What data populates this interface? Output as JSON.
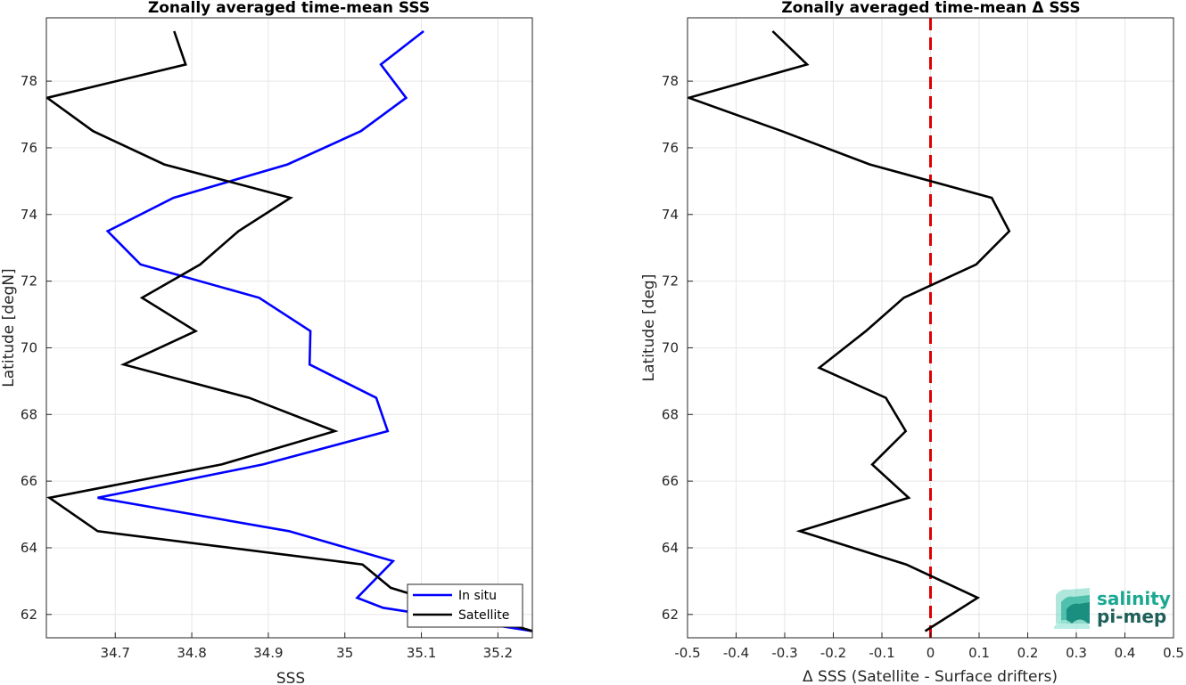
{
  "chart_data": [
    {
      "type": "line",
      "title": "Zonally averaged time-mean SSS",
      "xlabel": "SSS",
      "ylabel": "Latitude [degN]",
      "xlim": [
        34.61,
        35.245
      ],
      "ylim": [
        61.3,
        79.9
      ],
      "xticks": [
        34.7,
        34.8,
        34.9,
        35,
        35.1,
        35.2
      ],
      "xtick_labels": [
        "34.7",
        "34.8",
        "34.9",
        "35",
        "35.1",
        "35.2"
      ],
      "yticks": [
        62,
        64,
        66,
        68,
        70,
        72,
        74,
        76,
        78
      ],
      "ytick_labels": [
        "62",
        "64",
        "66",
        "68",
        "70",
        "72",
        "74",
        "76",
        "78"
      ],
      "grid": true,
      "legend": "bottom-right",
      "series": [
        {
          "name": "In situ",
          "color": "#0000ff",
          "points": [
            [
              35.103,
              79.5
            ],
            [
              35.047,
              78.5
            ],
            [
              35.08,
              77.5
            ],
            [
              35.021,
              76.5
            ],
            [
              34.925,
              75.5
            ],
            [
              34.776,
              74.5
            ],
            [
              34.69,
              73.5
            ],
            [
              34.733,
              72.5
            ],
            [
              34.888,
              71.5
            ],
            [
              34.955,
              70.5
            ],
            [
              34.954,
              69.5
            ],
            [
              35.041,
              68.5
            ],
            [
              35.056,
              67.5
            ],
            [
              34.893,
              66.5
            ],
            [
              34.677,
              65.5
            ],
            [
              34.927,
              64.5
            ],
            [
              35.063,
              63.6
            ],
            [
              35.016,
              62.5
            ],
            [
              35.05,
              62.2
            ],
            [
              35.245,
              61.5
            ]
          ]
        },
        {
          "name": "Satellite",
          "color": "#000000",
          "points": [
            [
              34.777,
              79.5
            ],
            [
              34.792,
              78.5
            ],
            [
              34.611,
              77.5
            ],
            [
              34.671,
              76.5
            ],
            [
              34.764,
              75.5
            ],
            [
              34.929,
              74.5
            ],
            [
              34.861,
              73.5
            ],
            [
              34.811,
              72.5
            ],
            [
              34.735,
              71.5
            ],
            [
              34.805,
              70.5
            ],
            [
              34.711,
              69.5
            ],
            [
              34.875,
              68.5
            ],
            [
              34.987,
              67.5
            ],
            [
              34.839,
              66.5
            ],
            [
              34.614,
              65.5
            ],
            [
              34.677,
              64.5
            ],
            [
              35.023,
              63.5
            ],
            [
              35.06,
              62.8
            ],
            [
              35.245,
              61.5
            ]
          ]
        }
      ]
    },
    {
      "type": "line",
      "title": "Zonally averaged time-mean Δ SSS",
      "xlabel": "Δ SSS (Satellite - Surface drifters)",
      "ylabel": "Latitude [deg]",
      "xlim": [
        -0.5,
        0.5
      ],
      "ylim": [
        61.3,
        79.9
      ],
      "xticks": [
        -0.5,
        -0.4,
        -0.3,
        -0.2,
        -0.1,
        0,
        0.1,
        0.2,
        0.3,
        0.4,
        0.5
      ],
      "xtick_labels": [
        "-0.5",
        "-0.4",
        "-0.3",
        "-0.2",
        "-0.1",
        "0",
        "0.1",
        "0.2",
        "0.3",
        "0.4",
        "0.5"
      ],
      "yticks": [
        62,
        64,
        66,
        68,
        70,
        72,
        74,
        76,
        78
      ],
      "ytick_labels": [
        "62",
        "64",
        "66",
        "68",
        "70",
        "72",
        "74",
        "76",
        "78"
      ],
      "grid": true,
      "reference_line": {
        "x": 0,
        "color": "#e00000",
        "style": "dashed"
      },
      "series": [
        {
          "color": "#000000",
          "points": [
            [
              -0.325,
              79.5
            ],
            [
              -0.254,
              78.5
            ],
            [
              -0.497,
              77.5
            ],
            [
              -0.306,
              76.5
            ],
            [
              -0.125,
              75.5
            ],
            [
              0.126,
              74.5
            ],
            [
              0.162,
              73.5
            ],
            [
              0.094,
              72.5
            ],
            [
              -0.055,
              71.5
            ],
            [
              -0.133,
              70.5
            ],
            [
              -0.229,
              69.4
            ],
            [
              -0.092,
              68.5
            ],
            [
              -0.051,
              67.5
            ],
            [
              -0.12,
              66.5
            ],
            [
              -0.045,
              65.5
            ],
            [
              -0.269,
              64.5
            ],
            [
              -0.05,
              63.5
            ],
            [
              0.097,
              62.5
            ],
            [
              -0.011,
              61.5
            ]
          ]
        }
      ]
    }
  ],
  "logo": {
    "line1": "salinity",
    "line2": "pi-mep",
    "color_top": "#1aa892",
    "color_bottom": "#1f5f5a"
  }
}
